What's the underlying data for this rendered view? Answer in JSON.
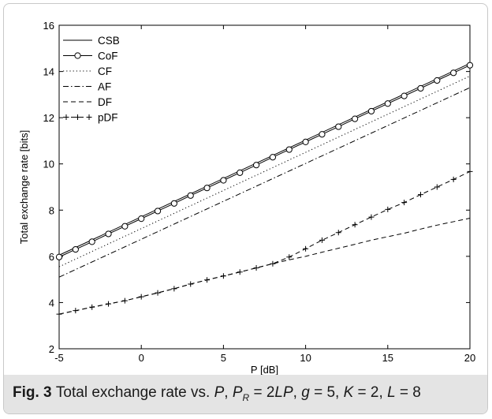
{
  "chart_data": {
    "type": "line",
    "xlabel": "P [dB]",
    "ylabel": "Total exchange rate [bits]",
    "xlim": [
      -5,
      20
    ],
    "ylim": [
      2,
      16
    ],
    "xticks": [
      -5,
      0,
      5,
      10,
      15,
      20
    ],
    "yticks": [
      2,
      4,
      6,
      8,
      10,
      12,
      14,
      16
    ],
    "grid": false,
    "legend_position": "top-left",
    "series": [
      {
        "name": "CSB",
        "style": "solid",
        "marker": "none",
        "x": [
          -5,
          20
        ],
        "y": [
          6.05,
          14.35
        ]
      },
      {
        "name": "CoF",
        "style": "solid",
        "marker": "circle",
        "x": [
          -5,
          -4,
          -3,
          -2,
          -1,
          0,
          1,
          2,
          3,
          4,
          5,
          6,
          7,
          8,
          9,
          10,
          11,
          12,
          13,
          14,
          15,
          16,
          17,
          18,
          19,
          20
        ],
        "y": [
          5.97,
          6.3,
          6.63,
          6.97,
          7.3,
          7.63,
          7.96,
          8.29,
          8.63,
          8.96,
          9.29,
          9.62,
          9.95,
          10.29,
          10.62,
          10.95,
          11.28,
          11.61,
          11.95,
          12.28,
          12.61,
          12.94,
          13.27,
          13.61,
          13.94,
          14.27
        ]
      },
      {
        "name": "CF",
        "style": "dotted",
        "marker": "none",
        "x": [
          -5,
          20
        ],
        "y": [
          5.55,
          13.8
        ]
      },
      {
        "name": "AF",
        "style": "dashdot",
        "marker": "none",
        "x": [
          -5,
          20
        ],
        "y": [
          5.1,
          13.3
        ]
      },
      {
        "name": "DF",
        "style": "dashed",
        "marker": "none",
        "x": [
          -5,
          -4,
          -3,
          -2,
          -1,
          0,
          1,
          2,
          3,
          4,
          5,
          6,
          7,
          8,
          9,
          10,
          11,
          12,
          13,
          14,
          15,
          16,
          17,
          18,
          19,
          20
        ],
        "y": [
          3.5,
          3.65,
          3.8,
          3.94,
          4.08,
          4.25,
          4.42,
          4.6,
          4.8,
          4.98,
          5.15,
          5.32,
          5.5,
          5.68,
          5.85,
          6.0,
          6.18,
          6.35,
          6.52,
          6.7,
          6.85,
          7.0,
          7.18,
          7.35,
          7.5,
          7.65
        ]
      },
      {
        "name": "pDF",
        "style": "dashed",
        "marker": "plus",
        "x": [
          -5,
          -4,
          -3,
          -2,
          -1,
          0,
          1,
          2,
          3,
          4,
          5,
          6,
          7,
          8,
          9,
          10,
          11,
          12,
          13,
          14,
          15,
          16,
          17,
          18,
          19,
          20
        ],
        "y": [
          3.5,
          3.65,
          3.8,
          3.94,
          4.08,
          4.25,
          4.42,
          4.6,
          4.8,
          4.98,
          5.15,
          5.32,
          5.5,
          5.68,
          5.97,
          6.33,
          6.7,
          7.03,
          7.37,
          7.7,
          8.03,
          8.33,
          8.67,
          9.0,
          9.33,
          9.67
        ]
      }
    ]
  },
  "caption": {
    "label": "Fig. 3",
    "text": " Total exchange rate vs. P, P_R = 2LP, g = 5, K = 2, L = 8"
  },
  "colors": {
    "line": "#000000",
    "caption_bg": "#e4e4e4",
    "frame_border": "#c8c8c8"
  }
}
